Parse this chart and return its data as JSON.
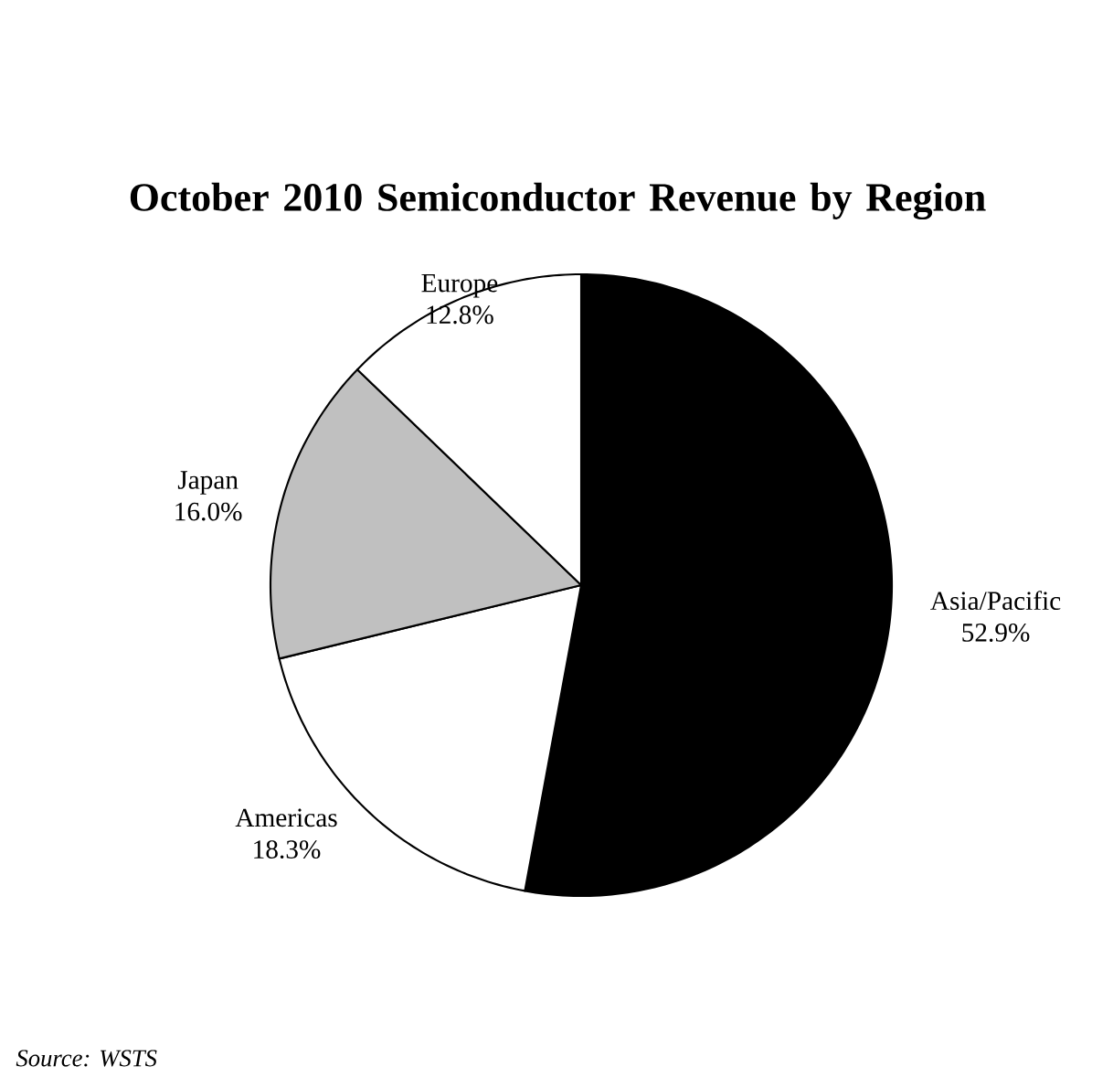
{
  "chart_data": {
    "type": "pie",
    "title": "October 2010 Semiconductor Revenue by Region",
    "categories": [
      "Asia/Pacific",
      "Americas",
      "Japan",
      "Europe"
    ],
    "values": [
      52.9,
      18.3,
      16.0,
      12.8
    ],
    "value_labels": [
      "52.9%",
      "18.3%",
      "16.0%",
      "12.8%"
    ],
    "legend": false,
    "colors": [
      "#000000",
      "#ffffff",
      "#c0c0c0",
      "#ffffff"
    ],
    "annotations": [
      "Source: WSTS"
    ]
  }
}
